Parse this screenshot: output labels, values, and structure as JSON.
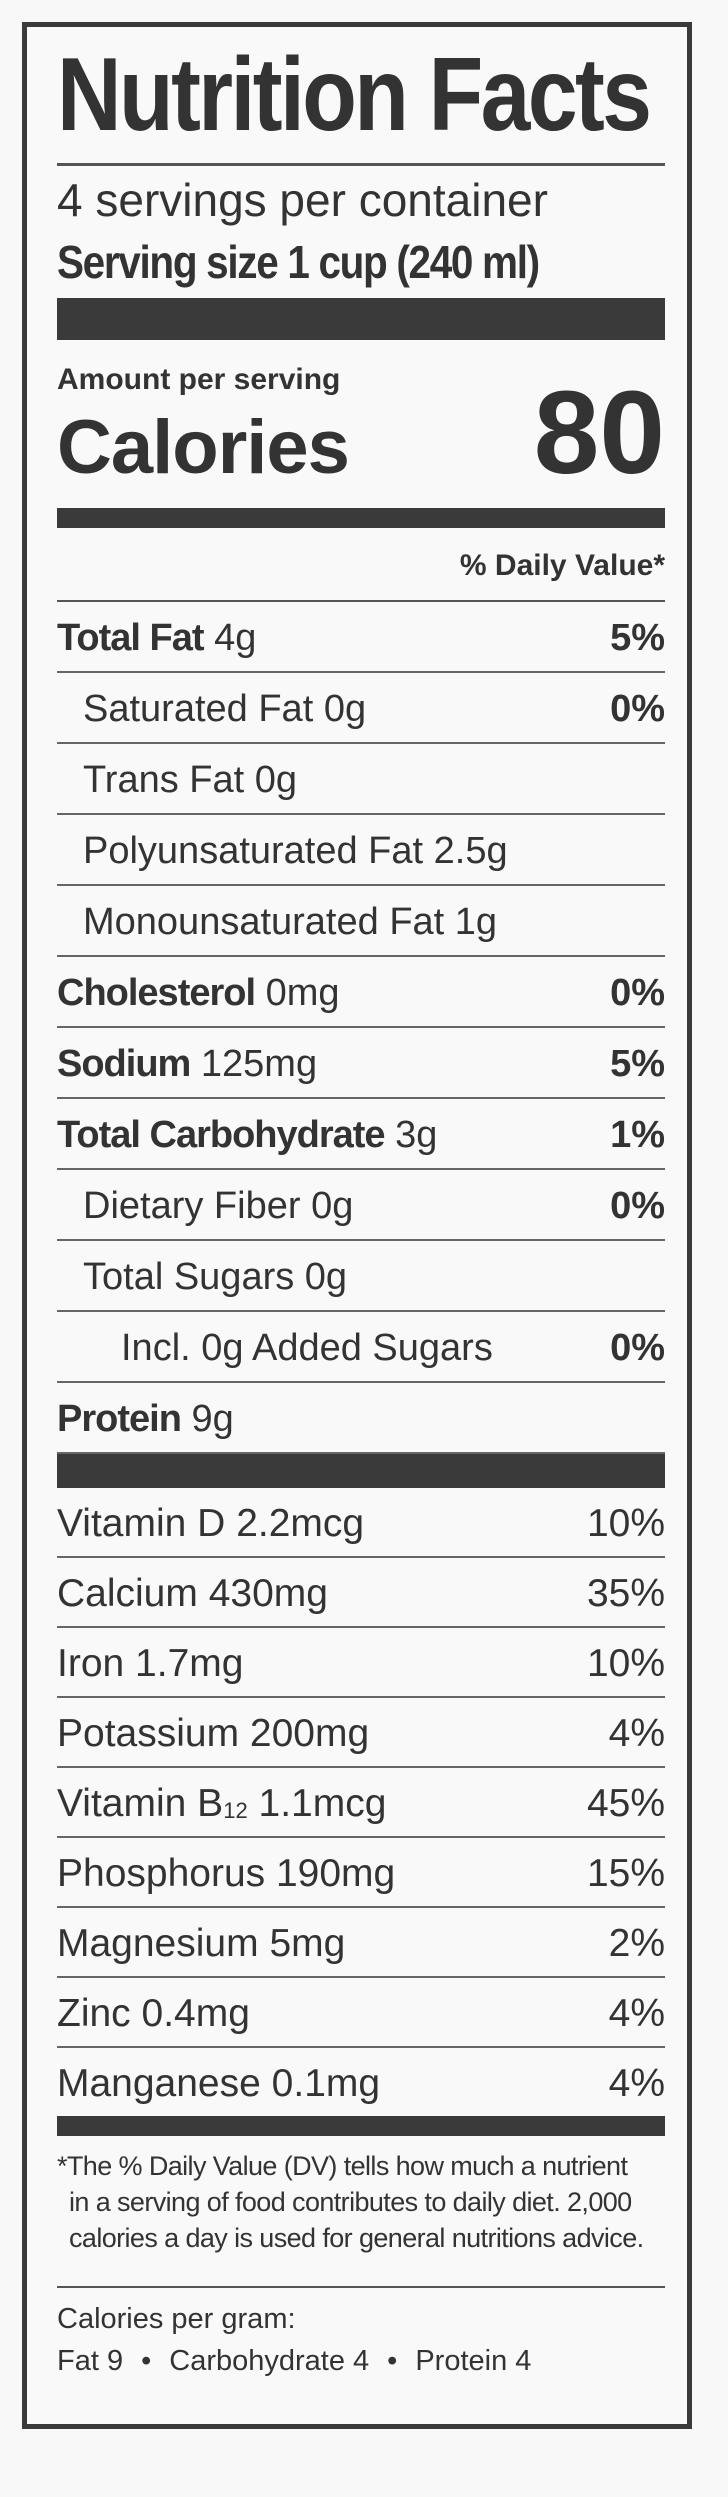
{
  "title": "Nutrition Facts",
  "servings_per_container": "4 servings per container",
  "serving_size": "Serving size 1 cup (240 ml)",
  "amount_per_serving": "Amount per serving",
  "calories_label": "Calories",
  "calories_value": "80",
  "daily_value_header": "% Daily Value*",
  "nutrients": [
    {
      "name": "Total Fat",
      "amount": "4g",
      "dv": "5%",
      "bold": true,
      "indent": 0
    },
    {
      "name": "Saturated Fat",
      "amount": "0g",
      "dv": "0%",
      "bold": false,
      "indent": 1
    },
    {
      "name": "Trans Fat",
      "amount": "0g",
      "dv": "",
      "bold": false,
      "indent": 1
    },
    {
      "name": "Polyunsaturated Fat",
      "amount": "2.5g",
      "dv": "",
      "bold": false,
      "indent": 1
    },
    {
      "name": "Monounsaturated Fat",
      "amount": "1g",
      "dv": "",
      "bold": false,
      "indent": 1
    },
    {
      "name": "Cholesterol",
      "amount": "0mg",
      "dv": "0%",
      "bold": true,
      "indent": 0
    },
    {
      "name": "Sodium",
      "amount": "125mg",
      "dv": "5%",
      "bold": true,
      "indent": 0
    },
    {
      "name": "Total Carbohydrate",
      "amount": "3g",
      "dv": "1%",
      "bold": true,
      "indent": 0
    },
    {
      "name": "Dietary Fiber",
      "amount": "0g",
      "dv": "0%",
      "bold": false,
      "indent": 1
    },
    {
      "name": "Total Sugars",
      "amount": "0g",
      "dv": "",
      "bold": false,
      "indent": 1
    },
    {
      "name": "Incl. 0g Added Sugars",
      "amount": "",
      "dv": "0%",
      "bold": false,
      "indent": 2
    },
    {
      "name": "Protein",
      "amount": "9g",
      "dv": "",
      "bold": true,
      "indent": 0
    }
  ],
  "vitamins": [
    {
      "name": "Vitamin D",
      "sub": "",
      "amount": "2.2mcg",
      "dv": "10%"
    },
    {
      "name": "Calcium",
      "sub": "",
      "amount": "430mg",
      "dv": "35%"
    },
    {
      "name": "Iron",
      "sub": "",
      "amount": "1.7mg",
      "dv": "10%"
    },
    {
      "name": "Potassium",
      "sub": "",
      "amount": "200mg",
      "dv": "4%"
    },
    {
      "name": "Vitamin B",
      "sub": "12",
      "amount": "1.1mcg",
      "dv": "45%"
    },
    {
      "name": "Phosphorus",
      "sub": "",
      "amount": "190mg",
      "dv": "15%"
    },
    {
      "name": "Magnesium",
      "sub": "",
      "amount": "5mg",
      "dv": "2%"
    },
    {
      "name": "Zinc",
      "sub": "",
      "amount": "0.4mg",
      "dv": "4%"
    },
    {
      "name": "Manganese",
      "sub": "",
      "amount": "0.1mg",
      "dv": "4%"
    }
  ],
  "footnote": [
    "*The % Daily Value (DV) tells how much a nutrient",
    "in a serving of food contributes to daily diet. 2,000",
    "calories a day is used for general nutritions advice."
  ],
  "calories_per_gram": {
    "label": "Calories per gram:",
    "fat": "Fat 9",
    "carbohydrate": "Carbohydrate 4",
    "protein": "Protein 4",
    "separator": "•"
  },
  "colors": {
    "ink": "#333333",
    "background": "#f9f9f9",
    "bars": "#3a3a3a"
  }
}
